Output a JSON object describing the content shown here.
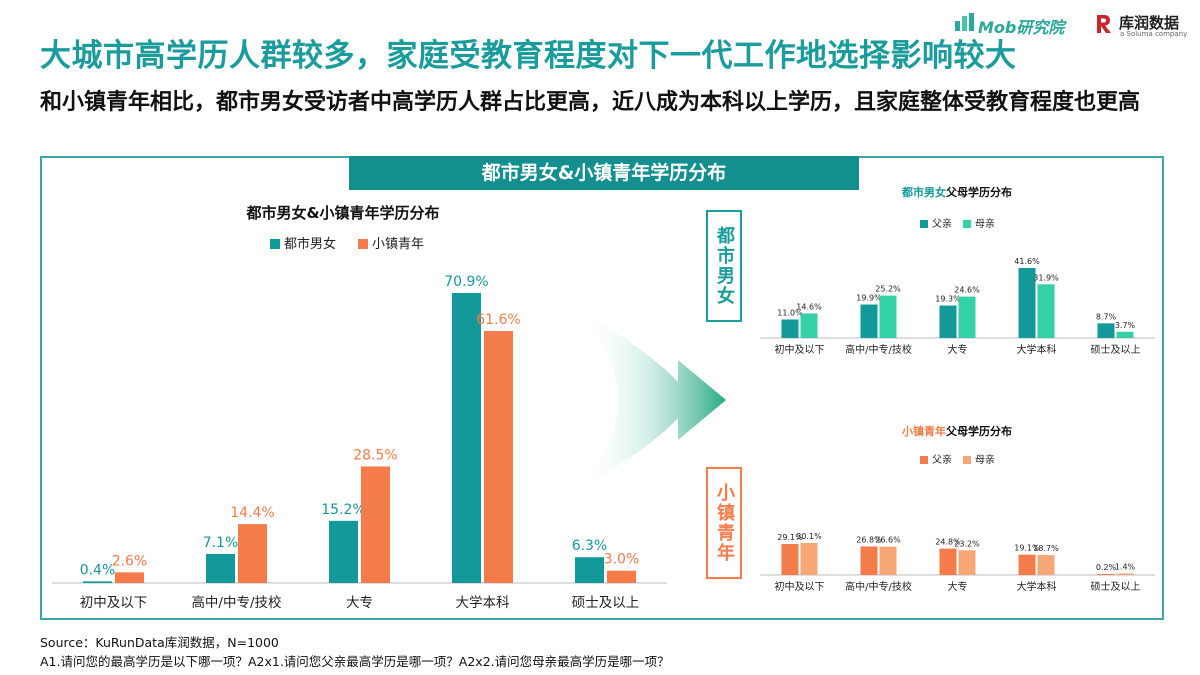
{
  "header": {
    "title": "大城市高学历人群较多，家庭受教育程度对下一代工作地选择影响较大",
    "subtitle": "和小镇青年相比，都市男女受访者中高学历人群占比更高，近八成为本科以上学历，且家庭整体受教育程度也更高"
  },
  "logos": {
    "mob": "Mob研究院",
    "kurun": "库润数据",
    "kurun_sub": "a Soluma company"
  },
  "banner": "都市男女&小镇青年学历分布",
  "side_labels": {
    "urban": "都市男女",
    "town": "小镇青年"
  },
  "colors": {
    "teal": "#13999a",
    "orange": "#f47c4a",
    "mint": "#33d1a6",
    "peach": "#f7a675",
    "frame": "#3aa7a6"
  },
  "chart_data": [
    {
      "type": "bar",
      "title": "都市男女&小镇青年学历分布",
      "categories": [
        "初中及以下",
        "高中/中专/技校",
        "大专",
        "大学本科",
        "硕士及以上"
      ],
      "series": [
        {
          "name": "都市男女",
          "values": [
            0.4,
            7.1,
            15.2,
            70.9,
            6.3
          ],
          "labels": [
            "0.4%",
            "7.1%",
            "15.2%",
            "70.9%",
            "6.3%"
          ],
          "color": "#13999a"
        },
        {
          "name": "小镇青年",
          "values": [
            2.6,
            14.4,
            28.5,
            61.6,
            3.0
          ],
          "labels": [
            "2.6%",
            "14.4%",
            "28.5%",
            "61.6%",
            "3.0%"
          ],
          "color": "#f47c4a"
        }
      ],
      "ylim": [
        0,
        75
      ],
      "grid": false,
      "legend": "top-center"
    },
    {
      "type": "bar",
      "title_highlight": "都市男女",
      "title_rest": "父母学历分布",
      "categories": [
        "初中及以下",
        "高中/中专/技校",
        "大专",
        "大学本科",
        "硕士及以上"
      ],
      "series": [
        {
          "name": "父亲",
          "values": [
            11.0,
            19.9,
            19.3,
            41.6,
            8.7
          ],
          "labels": [
            "11.0%",
            "19.9%",
            "19.3%",
            "41.6%",
            "8.7%"
          ],
          "color": "#13999a"
        },
        {
          "name": "母亲",
          "values": [
            14.6,
            25.2,
            24.6,
            31.9,
            3.7
          ],
          "labels": [
            "14.6%",
            "25.2%",
            "24.6%",
            "31.9%",
            "3.7%"
          ],
          "color": "#33d1a6"
        }
      ],
      "ylim": [
        0,
        45
      ],
      "grid": false,
      "legend": "top-center"
    },
    {
      "type": "bar",
      "title_highlight": "小镇青年",
      "title_rest": "父母学历分布",
      "categories": [
        "初中及以下",
        "高中/中专/技校",
        "大专",
        "大学本科",
        "硕士及以上"
      ],
      "series": [
        {
          "name": "父亲",
          "values": [
            29.1,
            26.8,
            24.8,
            19.1,
            0.2
          ],
          "labels": [
            "29.1%",
            "26.8%",
            "24.8%",
            "19.1%",
            "0.2%"
          ],
          "color": "#f47c4a"
        },
        {
          "name": "母亲",
          "values": [
            30.1,
            26.6,
            23.2,
            18.7,
            1.4
          ],
          "labels": [
            "30.1%",
            "26.6%",
            "23.2%",
            "18.7%",
            "1.4%"
          ],
          "color": "#f7a675"
        }
      ],
      "ylim": [
        0,
        45
      ],
      "grid": false,
      "legend": "top-center"
    }
  ],
  "footer": {
    "source": "Source：KuRunData库润数据，N=1000",
    "note": "A1.请问您的最高学历是以下哪一项？A2x1.请问您父亲最高学历是哪一项？A2x2.请问您母亲最高学历是哪一项？"
  }
}
